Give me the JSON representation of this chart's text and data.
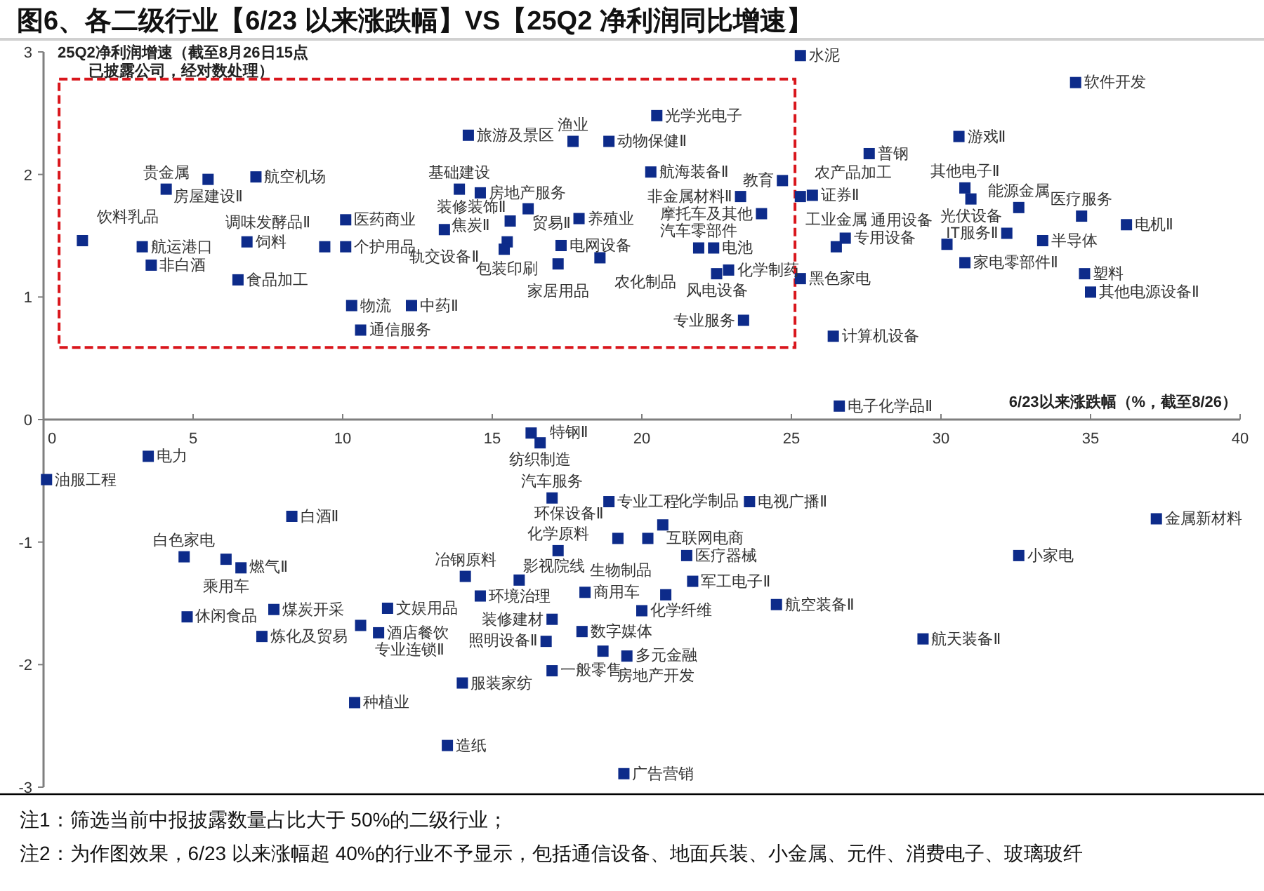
{
  "chart_data": {
    "type": "scatter",
    "title": "图6、各二级行业【6/23 以来涨跌幅】VS【25Q2 净利润同比增速】",
    "xlabel": "6/23以来涨跌幅（%，截至8/26）",
    "ylabel": "25Q2净利润增速（截至8月26日15点已披露公司，经对数处理）",
    "color": "#0d2b8a",
    "marker": "square",
    "xlim": [
      0,
      40
    ],
    "ylim": [
      -3,
      3
    ],
    "xticks": [
      0,
      5,
      10,
      15,
      20,
      25,
      30,
      35,
      40
    ],
    "yticks": [
      -3,
      -2,
      -1,
      0,
      1,
      2,
      3
    ],
    "x": [
      1.3,
      3.3,
      3.6,
      4.1,
      5.5,
      7.1,
      6.8,
      6.5,
      9.4,
      10.1,
      10.1,
      10.3,
      10.6,
      12.3,
      14.2,
      13.4,
      13.9,
      14.6,
      16.2,
      15.6,
      15.5,
      15.4,
      17.3,
      17.2,
      17.9,
      18.6,
      17.7,
      18.9,
      20.5,
      20.3,
      23.3,
      21.9,
      22.4,
      24.7,
      24.0,
      25.3,
      25.7,
      22.5,
      22.9,
      25.3,
      23.4,
      25.3,
      26.4,
      26.6,
      26.8,
      26.5,
      27.6,
      30.6,
      30.8,
      31.0,
      30.2,
      30.8,
      32.6,
      32.2,
      33.4,
      34.7,
      36.2,
      34.5,
      34.8,
      35.0,
      0.1,
      3.5,
      8.3,
      4.7,
      6.1,
      6.6,
      4.8,
      7.7,
      7.3,
      10.6,
      11.5,
      11.2,
      10.4,
      14.1,
      14.6,
      15.9,
      14.0,
      13.5,
      16.3,
      16.6,
      17.0,
      18.9,
      17.2,
      19.2,
      20.2,
      20.7,
      18.1,
      20.8,
      20.0,
      18.0,
      17.0,
      16.8,
      17.0,
      18.7,
      19.5,
      21.5,
      21.7,
      23.6,
      24.5,
      29.4,
      32.6,
      37.2,
      19.4
    ],
    "values": [
      1.46,
      1.41,
      1.26,
      1.88,
      1.96,
      1.98,
      1.45,
      1.14,
      1.41,
      1.41,
      1.63,
      0.93,
      0.73,
      0.93,
      2.32,
      1.55,
      1.88,
      1.85,
      1.72,
      1.62,
      1.45,
      1.39,
      1.42,
      1.27,
      1.64,
      1.32,
      2.27,
      2.27,
      2.48,
      2.02,
      1.82,
      1.4,
      1.4,
      1.95,
      1.68,
      1.82,
      1.83,
      1.19,
      1.22,
      1.15,
      0.81,
      2.97,
      0.68,
      0.11,
      1.48,
      1.41,
      2.17,
      2.31,
      1.89,
      1.8,
      1.43,
      1.28,
      1.73,
      1.52,
      1.46,
      1.66,
      1.59,
      2.75,
      1.19,
      1.04,
      -0.49,
      -0.3,
      -0.79,
      -1.12,
      -1.14,
      -1.21,
      -1.61,
      -1.55,
      -1.77,
      -1.68,
      -1.54,
      -1.74,
      -2.31,
      -1.28,
      -1.44,
      -1.31,
      -2.15,
      -2.66,
      -0.11,
      -0.19,
      -0.64,
      -0.67,
      -1.07,
      -0.97,
      -0.97,
      -0.86,
      -1.41,
      -1.43,
      -1.56,
      -1.73,
      -1.63,
      -1.81,
      -2.05,
      -1.89,
      -1.93,
      -1.11,
      -1.32,
      -0.67,
      -1.51,
      -1.79,
      -1.11,
      -0.81,
      -2.89
    ],
    "annotations": [
      {
        "text": "饮料乳品",
        "x": 1.3,
        "y": 1.46
      },
      {
        "text": "航运港口",
        "x": 3.3,
        "y": 1.41
      },
      {
        "text": "非白酒",
        "x": 3.6,
        "y": 1.26
      },
      {
        "text": "贵金属",
        "x": 4.1,
        "y": 1.88
      },
      {
        "text": "房屋建设Ⅱ",
        "x": 5.5,
        "y": 1.96
      },
      {
        "text": "航空机场",
        "x": 7.1,
        "y": 1.98
      },
      {
        "text": "饲料",
        "x": 6.8,
        "y": 1.45
      },
      {
        "text": "食品加工",
        "x": 6.5,
        "y": 1.14
      },
      {
        "text": "调味发酵品Ⅱ",
        "x": 9.4,
        "y": 1.41
      },
      {
        "text": "个护用品",
        "x": 10.1,
        "y": 1.41
      },
      {
        "text": "医药商业",
        "x": 10.1,
        "y": 1.63
      },
      {
        "text": "物流",
        "x": 10.3,
        "y": 0.93
      },
      {
        "text": "通信服务",
        "x": 10.6,
        "y": 0.73
      },
      {
        "text": "中药Ⅱ",
        "x": 12.3,
        "y": 0.93
      },
      {
        "text": "旅游及景区",
        "x": 14.2,
        "y": 2.32
      },
      {
        "text": "轨交设备Ⅱ",
        "x": 13.4,
        "y": 1.55
      },
      {
        "text": "基础建设",
        "x": 13.9,
        "y": 1.88
      },
      {
        "text": "房地产服务",
        "x": 14.6,
        "y": 1.85
      },
      {
        "text": "贸易Ⅱ",
        "x": 16.2,
        "y": 1.72
      },
      {
        "text": "装修装饰Ⅱ",
        "x": 15.6,
        "y": 1.62
      },
      {
        "text": "包装印刷",
        "x": 15.5,
        "y": 1.45
      },
      {
        "text": "焦炭Ⅱ",
        "x": 15.4,
        "y": 1.39
      },
      {
        "text": "电网设备",
        "x": 17.3,
        "y": 1.42
      },
      {
        "text": "家居用品",
        "x": 17.2,
        "y": 1.27
      },
      {
        "text": "养殖业",
        "x": 17.9,
        "y": 1.64
      },
      {
        "text": "农化制品",
        "x": 18.6,
        "y": 1.32
      },
      {
        "text": "渔业",
        "x": 17.7,
        "y": 2.27
      },
      {
        "text": "动物保健Ⅱ",
        "x": 18.9,
        "y": 2.27
      },
      {
        "text": "光学光电子",
        "x": 20.5,
        "y": 2.48
      },
      {
        "text": "航海装备Ⅱ",
        "x": 20.3,
        "y": 2.02
      },
      {
        "text": "非金属材料Ⅱ",
        "x": 23.3,
        "y": 1.82
      },
      {
        "text": "汽车零部件",
        "x": 21.9,
        "y": 1.4
      },
      {
        "text": "电池",
        "x": 22.4,
        "y": 1.4
      },
      {
        "text": "教育",
        "x": 24.7,
        "y": 1.95
      },
      {
        "text": "摩托车及其他",
        "x": 24.0,
        "y": 1.68
      },
      {
        "text": "农产品加工",
        "x": 25.3,
        "y": 1.82
      },
      {
        "text": "证券Ⅱ",
        "x": 25.7,
        "y": 1.83
      },
      {
        "text": "风电设备",
        "x": 22.5,
        "y": 1.19
      },
      {
        "text": "化学制药",
        "x": 22.9,
        "y": 1.22
      },
      {
        "text": "黑色家电",
        "x": 25.3,
        "y": 1.15
      },
      {
        "text": "专业服务",
        "x": 23.4,
        "y": 0.81
      },
      {
        "text": "水泥",
        "x": 25.3,
        "y": 2.97
      },
      {
        "text": "计算机设备",
        "x": 26.4,
        "y": 0.68
      },
      {
        "text": "电子化学品Ⅱ",
        "x": 26.6,
        "y": 0.11
      },
      {
        "text": "专用设备",
        "x": 26.8,
        "y": 1.48
      },
      {
        "text": "工业金属",
        "x": 26.5,
        "y": 1.41
      },
      {
        "text": "普钢",
        "x": 27.6,
        "y": 2.17
      },
      {
        "text": "游戏Ⅱ",
        "x": 30.6,
        "y": 2.31
      },
      {
        "text": "其他电子Ⅱ",
        "x": 30.8,
        "y": 1.89
      },
      {
        "text": "光伏设备",
        "x": 31.0,
        "y": 1.8
      },
      {
        "text": "通用设备",
        "x": 30.2,
        "y": 1.43
      },
      {
        "text": "家电零部件Ⅱ",
        "x": 30.8,
        "y": 1.28
      },
      {
        "text": "能源金属",
        "x": 32.6,
        "y": 1.73
      },
      {
        "text": "IT服务Ⅱ",
        "x": 32.2,
        "y": 1.52
      },
      {
        "text": "半导体",
        "x": 33.4,
        "y": 1.46
      },
      {
        "text": "医疗服务",
        "x": 34.7,
        "y": 1.66
      },
      {
        "text": "电机Ⅱ",
        "x": 36.2,
        "y": 1.59
      },
      {
        "text": "软件开发",
        "x": 34.5,
        "y": 2.75
      },
      {
        "text": "塑料",
        "x": 34.8,
        "y": 1.19
      },
      {
        "text": "其他电源设备Ⅱ",
        "x": 35.0,
        "y": 1.04
      },
      {
        "text": "油服工程",
        "x": 0.1,
        "y": -0.49
      },
      {
        "text": "电力",
        "x": 3.5,
        "y": -0.3
      },
      {
        "text": "白酒Ⅱ",
        "x": 8.3,
        "y": -0.79
      },
      {
        "text": "白色家电",
        "x": 4.7,
        "y": -1.12
      },
      {
        "text": "乘用车",
        "x": 6.1,
        "y": -1.14
      },
      {
        "text": "燃气Ⅱ",
        "x": 6.6,
        "y": -1.21
      },
      {
        "text": "休闲食品",
        "x": 4.8,
        "y": -1.61
      },
      {
        "text": "煤炭开采",
        "x": 7.7,
        "y": -1.55
      },
      {
        "text": "炼化及贸易",
        "x": 7.3,
        "y": -1.77
      },
      {
        "text": "专业连锁Ⅱ",
        "x": 10.6,
        "y": -1.68
      },
      {
        "text": "文娱用品",
        "x": 11.5,
        "y": -1.54
      },
      {
        "text": "酒店餐饮",
        "x": 11.2,
        "y": -1.74
      },
      {
        "text": "种植业",
        "x": 10.4,
        "y": -2.31
      },
      {
        "text": "冶钢原料",
        "x": 14.1,
        "y": -1.28
      },
      {
        "text": "环境治理",
        "x": 14.6,
        "y": -1.44
      },
      {
        "text": "影视院线",
        "x": 15.9,
        "y": -1.31
      },
      {
        "text": "服装家纺",
        "x": 14.0,
        "y": -2.15
      },
      {
        "text": "造纸",
        "x": 13.5,
        "y": -2.66
      },
      {
        "text": "特钢Ⅱ",
        "x": 16.3,
        "y": -0.11
      },
      {
        "text": "纺织制造",
        "x": 16.6,
        "y": -0.19
      },
      {
        "text": "汽车服务",
        "x": 17.0,
        "y": -0.64
      },
      {
        "text": "专业工程",
        "x": 18.9,
        "y": -0.67
      },
      {
        "text": "化学原料",
        "x": 17.2,
        "y": -1.07
      },
      {
        "text": "环保设备Ⅱ",
        "x": 19.2,
        "y": -0.97
      },
      {
        "text": "互联网电商",
        "x": 20.2,
        "y": -0.97
      },
      {
        "text": "化学制品",
        "x": 20.7,
        "y": -0.86
      },
      {
        "text": "商用车",
        "x": 18.1,
        "y": -1.41
      },
      {
        "text": "生物制品",
        "x": 20.8,
        "y": -1.43
      },
      {
        "text": "化学纤维",
        "x": 20.0,
        "y": -1.56
      },
      {
        "text": "数字媒体",
        "x": 18.0,
        "y": -1.73
      },
      {
        "text": "装修建材",
        "x": 17.0,
        "y": -1.63
      },
      {
        "text": "照明设备Ⅱ",
        "x": 16.8,
        "y": -1.81
      },
      {
        "text": "一般零售",
        "x": 17.0,
        "y": -2.05
      },
      {
        "text": "房地产开发",
        "x": 18.7,
        "y": -1.89
      },
      {
        "text": "多元金融",
        "x": 19.5,
        "y": -1.93
      },
      {
        "text": "医疗器械",
        "x": 21.5,
        "y": -1.11
      },
      {
        "text": "军工电子Ⅱ",
        "x": 21.7,
        "y": -1.32
      },
      {
        "text": "电视广播Ⅱ",
        "x": 23.6,
        "y": -0.67
      },
      {
        "text": "航空装备Ⅱ",
        "x": 24.5,
        "y": -1.51
      },
      {
        "text": "航天装备Ⅱ",
        "x": 29.4,
        "y": -1.79
      },
      {
        "text": "小家电",
        "x": 32.6,
        "y": -1.11
      },
      {
        "text": "金属新材料",
        "x": 37.2,
        "y": -0.81
      },
      {
        "text": "广告营销",
        "x": 19.4,
        "y": -2.89
      },
      "注1：筛选当前中报披露数量占比大于 50%的二级行业；",
      "注2：为作图效果，6/23 以来涨幅超 40%的行业不予显示，包括通信设备、地面兵装、小金属、元件、消费电子、玻璃玻纤"
    ]
  }
}
